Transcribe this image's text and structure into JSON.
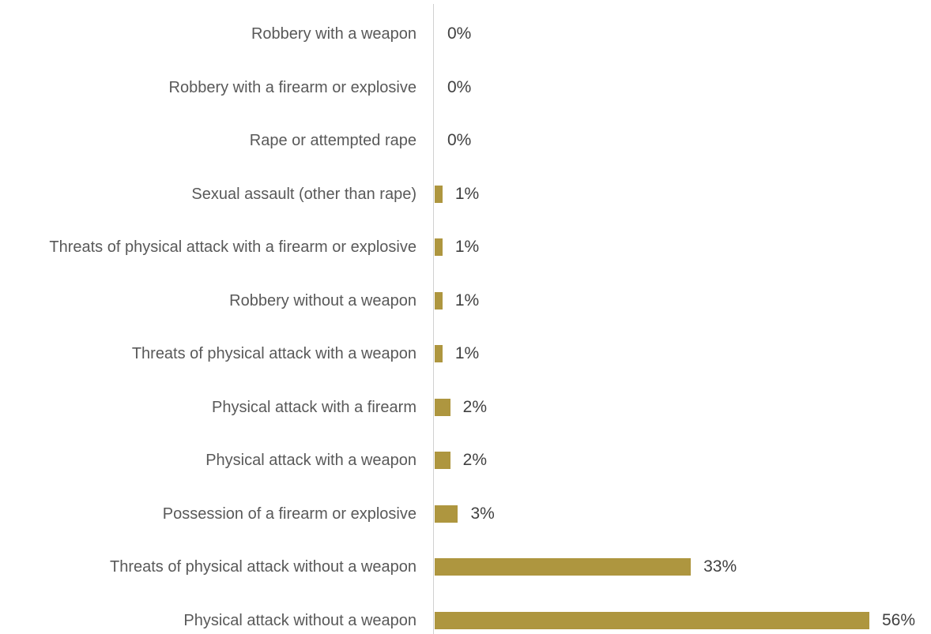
{
  "chart_data": {
    "type": "bar",
    "orientation": "horizontal",
    "categories": [
      "Robbery with a weapon",
      "Robbery with a firearm or explosive",
      "Rape or attempted rape",
      "Sexual assault (other than rape)",
      "Threats of physical attack with a firearm or explosive",
      "Robbery without a weapon",
      "Threats of physical attack with a weapon",
      "Physical attack with a firearm",
      "Physical attack with a weapon",
      "Possession of a firearm or explosive",
      "Threats of physical attack without a weapon",
      "Physical attack without a weapon"
    ],
    "values": [
      0,
      0,
      0,
      1,
      1,
      1,
      1,
      2,
      2,
      3,
      33,
      56
    ],
    "value_labels": [
      "0%",
      "0%",
      "0%",
      "1%",
      "1%",
      "1%",
      "1%",
      "2%",
      "2%",
      "3%",
      "33%",
      "56%"
    ],
    "color": "#ae963f"
  }
}
